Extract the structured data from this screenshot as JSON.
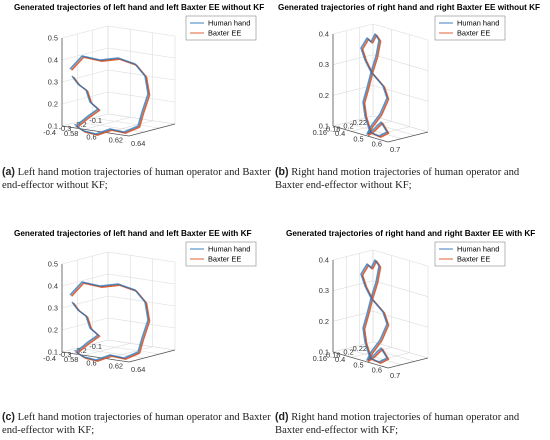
{
  "colors": {
    "human": "#3c7fbf",
    "baxter": "#e0623a",
    "axis": "#555555",
    "grid": "#dcdcdc"
  },
  "chart_data": [
    {
      "id": "a",
      "type": "line",
      "title": "Generated trajectories of left hand and left Baxter EE without KF",
      "view": "3d",
      "grid": true,
      "legend": "top-right",
      "series": [
        {
          "name": "Human hand"
        },
        {
          "name": "Baxter EE"
        }
      ],
      "zlim": [
        0.1,
        0.5
      ],
      "z_ticks": [
        "0.1",
        "0.2",
        "0.3",
        "0.4",
        "0.5"
      ],
      "x_ticks": [
        "-0.4",
        "-0.3",
        "-0.2",
        "-0.1"
      ],
      "y_ticks": [
        "0.58",
        "0.6",
        "0.62",
        "0.64"
      ],
      "caption_label": "(a)",
      "caption_text": "Left hand motion trajectories of human operator and Baxter end-effector without KF;"
    },
    {
      "id": "b",
      "type": "line",
      "title": "Generated trajectories of right hand and right Baxter EE without KF",
      "view": "3d",
      "grid": true,
      "legend": "top-right",
      "series": [
        {
          "name": "Human hand"
        },
        {
          "name": "Baxter EE"
        }
      ],
      "zlim": [
        0.1,
        0.4
      ],
      "z_ticks": [
        "0.1",
        "0.2",
        "0.3",
        "0.4"
      ],
      "x_ticks": [
        "0.16",
        "0.18",
        "0.2",
        "0.22"
      ],
      "y_ticks": [
        "0.4",
        "0.5",
        "0.6",
        "0.7"
      ],
      "caption_label": "(b)",
      "caption_text": "Right hand motion trajectories of human operator and Baxter end-effector without KF;"
    },
    {
      "id": "c",
      "type": "line",
      "title": "Generated trajectories of left hand and left Baxter EE with KF",
      "view": "3d",
      "grid": true,
      "legend": "top-right",
      "series": [
        {
          "name": "Human hand"
        },
        {
          "name": "Baxter EE"
        }
      ],
      "zlim": [
        0.1,
        0.5
      ],
      "z_ticks": [
        "0.1",
        "0.2",
        "0.3",
        "0.4",
        "0.5"
      ],
      "x_ticks": [
        "-0.4",
        "-0.3",
        "-0.2",
        "-0.1"
      ],
      "y_ticks": [
        "0.58",
        "0.6",
        "0.62",
        "0.64"
      ],
      "caption_label": "(c)",
      "caption_text": "Left hand motion trajectories of human operator and Baxter end-effector with KF;"
    },
    {
      "id": "d",
      "type": "line",
      "title": "Generated trajectories of right hand and right Baxter EE with KF",
      "view": "3d",
      "grid": true,
      "legend": "top-right",
      "series": [
        {
          "name": "Human hand"
        },
        {
          "name": "Baxter EE"
        }
      ],
      "zlim": [
        0.1,
        0.4
      ],
      "z_ticks": [
        "0.1",
        "0.2",
        "0.3",
        "0.4"
      ],
      "x_ticks": [
        "0.16",
        "0.18",
        "0.2",
        "0.22"
      ],
      "y_ticks": [
        "0.4",
        "0.5",
        "0.6",
        "0.7"
      ],
      "caption_label": "(d)",
      "caption_text": "Right hand motion trajectories of human operator and Baxter end-effector with KF;"
    }
  ]
}
